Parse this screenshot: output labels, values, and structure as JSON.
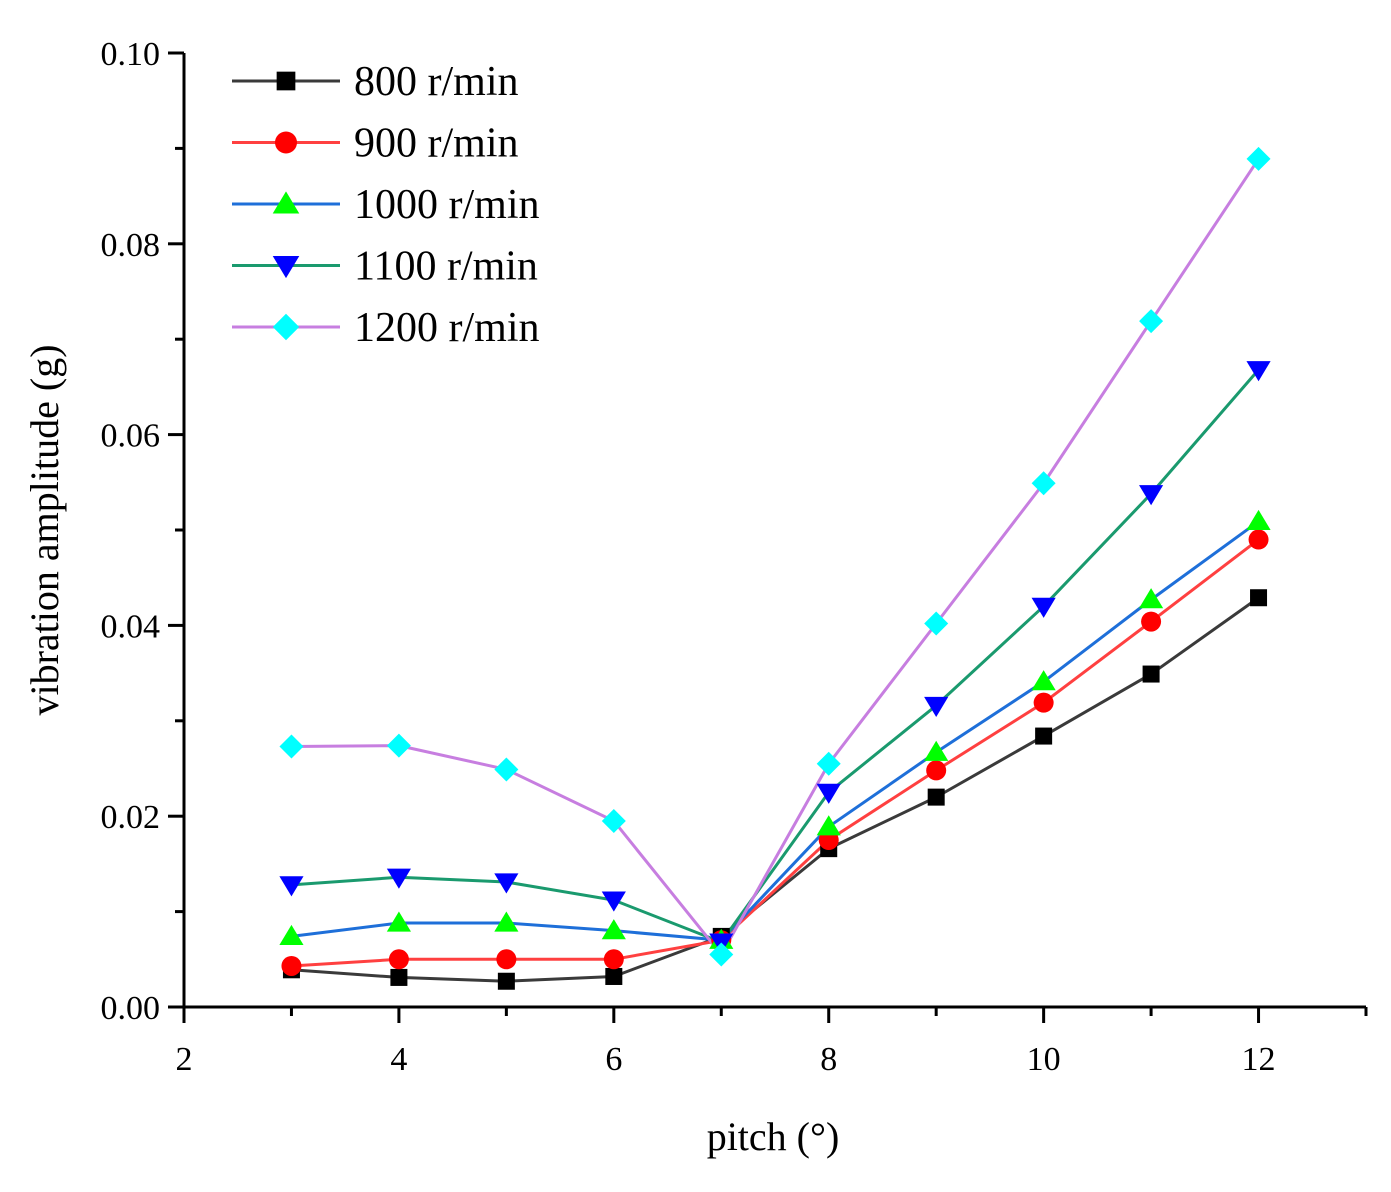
{
  "chart_data": {
    "type": "line",
    "title": "",
    "xlabel": "pitch (°)",
    "ylabel": "vibration amplitude (g)",
    "xlim": [
      2,
      13
    ],
    "ylim": [
      0,
      0.1
    ],
    "x_ticks": [
      "2",
      "4",
      "6",
      "8",
      "10",
      "12"
    ],
    "x_tick_values": [
      2,
      4,
      6,
      8,
      10,
      12
    ],
    "y_ticks": [
      "0.00",
      "0.02",
      "0.04",
      "0.06",
      "0.08",
      "0.10"
    ],
    "y_tick_values": [
      0,
      0.02,
      0.04,
      0.06,
      0.08,
      0.1
    ],
    "grid": false,
    "legend_position": "top-left",
    "x": [
      3,
      4,
      5,
      6,
      7,
      8,
      9,
      10,
      11,
      12
    ],
    "series": [
      {
        "name": "800 r/min",
        "color": "#3a3a3a",
        "marker_color": "#000000",
        "marker": "square",
        "values": [
          0.0039,
          0.0031,
          0.0027,
          0.0032,
          0.0074,
          0.0166,
          0.022,
          0.0284,
          0.0349,
          0.0429
        ]
      },
      {
        "name": "900 r/min",
        "color": "#ff4040",
        "marker_color": "#ff0000",
        "marker": "circle",
        "values": [
          0.0043,
          0.005,
          0.005,
          0.005,
          0.007,
          0.0175,
          0.0248,
          0.0319,
          0.0404,
          0.049
        ]
      },
      {
        "name": "1000 r/min",
        "color": "#1e6fd9",
        "marker_color": "#00ff00",
        "marker": "triangle-up",
        "values": [
          0.0074,
          0.0088,
          0.0088,
          0.008,
          0.007,
          0.0189,
          0.0267,
          0.0341,
          0.0427,
          0.0509
        ]
      },
      {
        "name": "1100 r/min",
        "color": "#1a9a6e",
        "marker_color": "#0000ff",
        "marker": "triangle-down",
        "values": [
          0.0128,
          0.0136,
          0.0131,
          0.0112,
          0.0068,
          0.0225,
          0.0316,
          0.042,
          0.0538,
          0.0668
        ]
      },
      {
        "name": "1200 r/min",
        "color": "#c77ee0",
        "marker_color": "#00ffff",
        "marker": "diamond",
        "values": [
          0.0273,
          0.0274,
          0.0249,
          0.0195,
          0.0055,
          0.0255,
          0.0402,
          0.0549,
          0.0719,
          0.0889
        ]
      }
    ]
  }
}
